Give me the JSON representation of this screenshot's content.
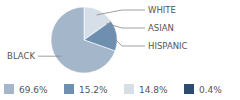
{
  "chart_data": {
    "type": "pie",
    "categories": [
      "BLACK",
      "HISPANIC",
      "WHITE",
      "ASIAN"
    ],
    "values": [
      69.6,
      15.2,
      14.8,
      0.4
    ],
    "value_labels": [
      "69.6%",
      "15.2%",
      "14.8%",
      "0.4%"
    ],
    "colors": [
      "#a3b6ca",
      "#6f8fb0",
      "#d6dee8",
      "#2e4d6e"
    ],
    "legend": "bottom"
  }
}
